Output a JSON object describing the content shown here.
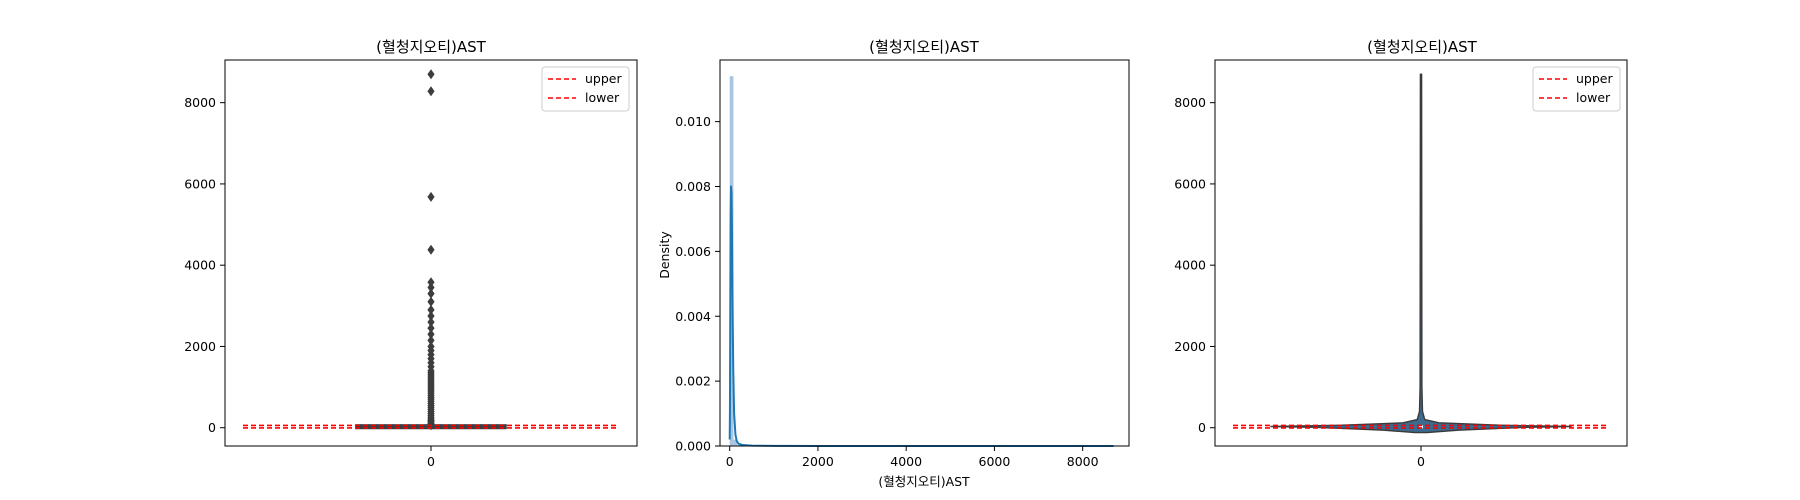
{
  "chart_data": [
    {
      "type": "box",
      "title": "(혈청지오티)AST",
      "xlabel": "",
      "ylabel": "",
      "categories": [
        "0"
      ],
      "ylim": [
        -450,
        9050
      ],
      "yticks": [
        0,
        2000,
        4000,
        6000,
        8000
      ],
      "box": {
        "q1": 18,
        "median": 24,
        "q3": 32,
        "whisker_low": 5,
        "whisker_high": 55
      },
      "outliers": [
        60,
        80,
        100,
        120,
        150,
        180,
        210,
        250,
        300,
        350,
        400,
        450,
        500,
        550,
        600,
        650,
        700,
        750,
        800,
        850,
        900,
        950,
        1000,
        1050,
        1100,
        1150,
        1200,
        1250,
        1300,
        1350,
        1400,
        1500,
        1600,
        1700,
        1800,
        1900,
        2000,
        2150,
        2300,
        2450,
        2600,
        2750,
        2900,
        3100,
        3300,
        3450,
        3580,
        4380,
        5680,
        8280,
        8700
      ],
      "hlines": [
        {
          "name": "upper",
          "value": 55,
          "color": "#ff0000"
        },
        {
          "name": "lower",
          "value": -5,
          "color": "#ff0000"
        }
      ],
      "legend": {
        "position": "top-right",
        "entries": [
          "upper",
          "lower"
        ]
      },
      "colors": {
        "box": "#3a3a3a",
        "outlier": "#3d3d3d"
      }
    },
    {
      "type": "histogram",
      "title": "(혈청지오티)AST",
      "xlabel": "(혈청지오티)AST",
      "ylabel": "Density",
      "xlim": [
        -220,
        9050
      ],
      "ylim": [
        0,
        0.0119
      ],
      "xticks": [
        0,
        2000,
        4000,
        6000,
        8000
      ],
      "yticks": [
        0.0,
        0.002,
        0.004,
        0.006,
        0.008,
        0.01
      ],
      "ytick_labels": [
        "0.000",
        "0.002",
        "0.004",
        "0.006",
        "0.008",
        "0.010"
      ],
      "hist": {
        "bin_start": 0,
        "bin_width": 85,
        "values": [
          0.0114,
          0.0002,
          3e-05
        ]
      },
      "kde": {
        "x": [
          0,
          5,
          10,
          20,
          30,
          40,
          50,
          60,
          70,
          80,
          100,
          130,
          160,
          200,
          300,
          500,
          1000,
          2000,
          4000,
          6000,
          8000,
          8700
        ],
        "y": [
          0.0002,
          0.001,
          0.003,
          0.007,
          0.008,
          0.0078,
          0.0068,
          0.0052,
          0.0036,
          0.0024,
          0.001,
          0.00035,
          0.00015,
          7e-05,
          3e-05,
          1.2e-05,
          5e-06,
          2e-06,
          1e-06,
          5e-07,
          3e-07,
          2e-07
        ]
      },
      "colors": {
        "hist": "#a9c6e0",
        "kde": "#1f77b4"
      }
    },
    {
      "type": "violin",
      "title": "(혈청지오티)AST",
      "xlabel": "",
      "ylabel": "",
      "categories": [
        "0"
      ],
      "ylim": [
        -450,
        9050
      ],
      "yticks": [
        0,
        2000,
        4000,
        6000,
        8000
      ],
      "violin": {
        "profile": [
          {
            "value": 8700,
            "width": 0.004
          },
          {
            "value": 1000,
            "width": 0.006
          },
          {
            "value": 400,
            "width": 0.01
          },
          {
            "value": 200,
            "width": 0.025
          },
          {
            "value": 120,
            "width": 0.12
          },
          {
            "value": 60,
            "width": 0.55
          },
          {
            "value": 30,
            "width": 1.0
          },
          {
            "value": 10,
            "width": 0.7
          },
          {
            "value": -60,
            "width": 0.25
          },
          {
            "value": -120,
            "width": 0.04
          }
        ],
        "iqr": [
          18,
          32
        ],
        "median": 24
      },
      "hlines": [
        {
          "name": "upper",
          "value": 55,
          "color": "#ff0000"
        },
        {
          "name": "lower",
          "value": -5,
          "color": "#ff0000"
        }
      ],
      "legend": {
        "position": "top-right",
        "entries": [
          "upper",
          "lower"
        ]
      },
      "colors": {
        "violin": "#3b6b8f",
        "edge": "#3a3a3a"
      }
    }
  ]
}
